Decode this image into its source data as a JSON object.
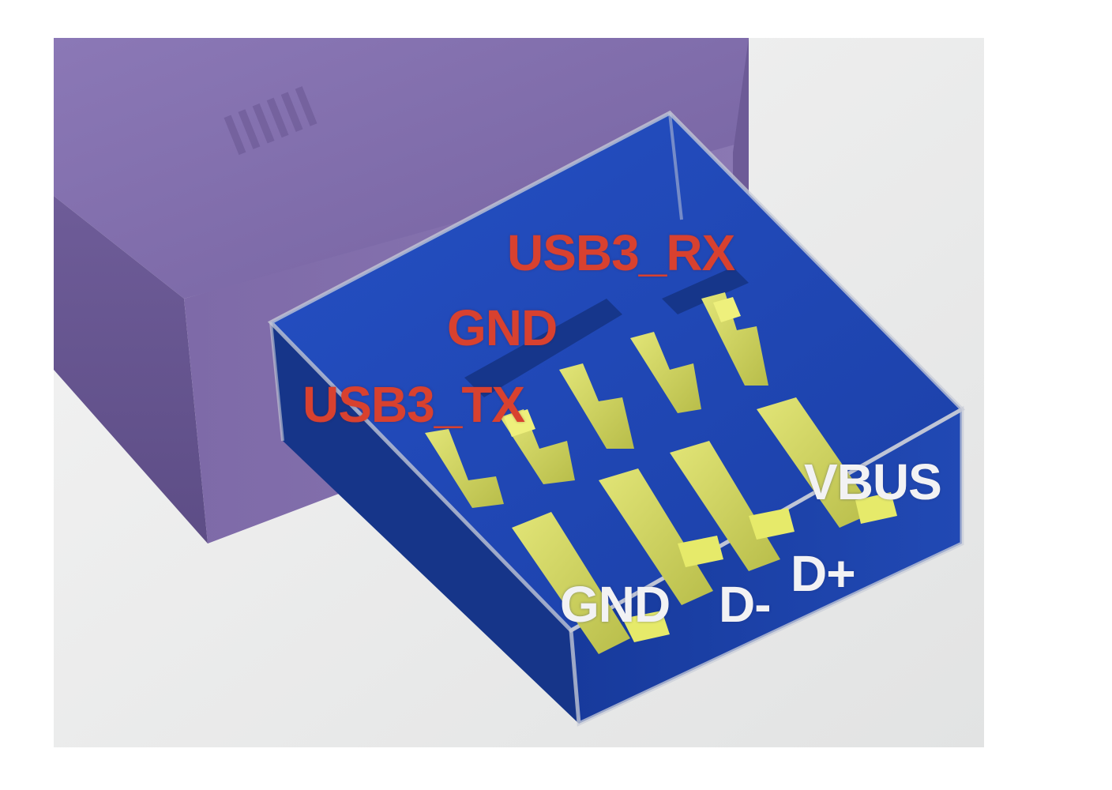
{
  "labels": {
    "usb3_rx": "USB3_RX",
    "gnd_top": "GND",
    "usb3_tx": "USB3_TX",
    "vbus": "VBUS",
    "gnd_bottom": "GND",
    "d_minus": "D-",
    "d_plus": "D+"
  },
  "colors": {
    "plug_body": "#7b67a6",
    "connector_tongue": "#1f49b8",
    "contact_pins": "#d7dc64",
    "red_label": "#d8412f",
    "white_label": "#f2f2f4",
    "background": "#e9eaea"
  }
}
